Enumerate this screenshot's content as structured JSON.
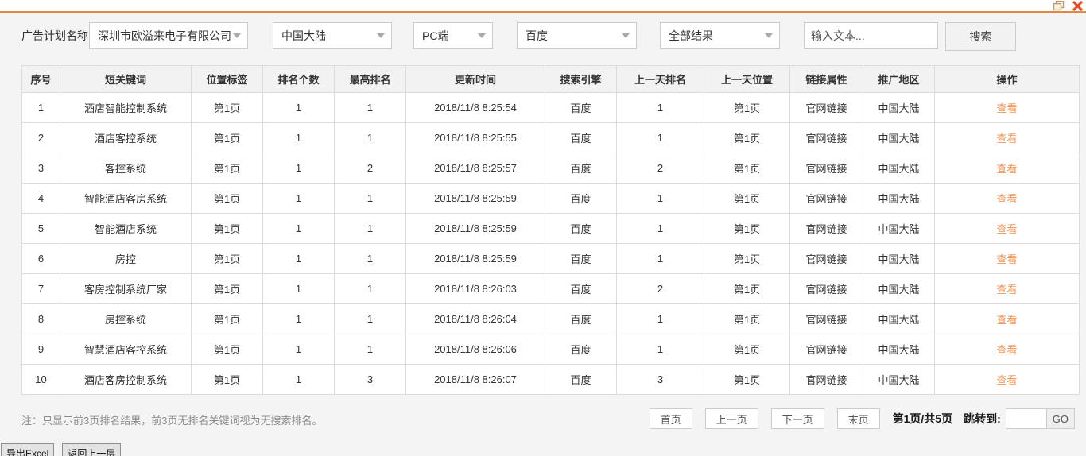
{
  "window": {
    "restore_icon": "restore-window",
    "close_icon": "close-window"
  },
  "filters": {
    "label": "广告计划名称:",
    "dropdowns": [
      {
        "name": "ad-plan",
        "value": "深圳市欧溢来电子有限公司"
      },
      {
        "name": "region",
        "value": "中国大陆"
      },
      {
        "name": "device",
        "value": "PC端"
      },
      {
        "name": "engine",
        "value": "百度"
      },
      {
        "name": "result-scope",
        "value": "全部结果"
      }
    ],
    "search_placeholder": "输入文本...",
    "search_button": "搜索"
  },
  "table": {
    "columns": [
      "序号",
      "短关键词",
      "位置标签",
      "排名个数",
      "最高排名",
      "更新时间",
      "搜索引擎",
      "上一天排名",
      "上一天位置",
      "链接属性",
      "推广地区",
      "操作"
    ],
    "rows": [
      {
        "seq": "1",
        "keyword": "酒店智能控制系统",
        "pos_tag": "第1页",
        "rank_count": "1",
        "best_rank": "1",
        "updated": "2018/11/8 8:25:54",
        "engine": "百度",
        "prev_rank": "1",
        "prev_pos": "第1页",
        "link_type": "官网链接",
        "region": "中国大陆",
        "action": "查看"
      },
      {
        "seq": "2",
        "keyword": "酒店客控系统",
        "pos_tag": "第1页",
        "rank_count": "1",
        "best_rank": "1",
        "updated": "2018/11/8 8:25:55",
        "engine": "百度",
        "prev_rank": "1",
        "prev_pos": "第1页",
        "link_type": "官网链接",
        "region": "中国大陆",
        "action": "查看"
      },
      {
        "seq": "3",
        "keyword": "客控系统",
        "pos_tag": "第1页",
        "rank_count": "1",
        "best_rank": "2",
        "updated": "2018/11/8 8:25:57",
        "engine": "百度",
        "prev_rank": "2",
        "prev_pos": "第1页",
        "link_type": "官网链接",
        "region": "中国大陆",
        "action": "查看"
      },
      {
        "seq": "4",
        "keyword": "智能酒店客房系统",
        "pos_tag": "第1页",
        "rank_count": "1",
        "best_rank": "1",
        "updated": "2018/11/8 8:25:59",
        "engine": "百度",
        "prev_rank": "1",
        "prev_pos": "第1页",
        "link_type": "官网链接",
        "region": "中国大陆",
        "action": "查看"
      },
      {
        "seq": "5",
        "keyword": "智能酒店系统",
        "pos_tag": "第1页",
        "rank_count": "1",
        "best_rank": "1",
        "updated": "2018/11/8 8:25:59",
        "engine": "百度",
        "prev_rank": "1",
        "prev_pos": "第1页",
        "link_type": "官网链接",
        "region": "中国大陆",
        "action": "查看"
      },
      {
        "seq": "6",
        "keyword": "房控",
        "pos_tag": "第1页",
        "rank_count": "1",
        "best_rank": "1",
        "updated": "2018/11/8 8:25:59",
        "engine": "百度",
        "prev_rank": "1",
        "prev_pos": "第1页",
        "link_type": "官网链接",
        "region": "中国大陆",
        "action": "查看"
      },
      {
        "seq": "7",
        "keyword": "客房控制系统厂家",
        "pos_tag": "第1页",
        "rank_count": "1",
        "best_rank": "1",
        "updated": "2018/11/8 8:26:03",
        "engine": "百度",
        "prev_rank": "2",
        "prev_pos": "第1页",
        "link_type": "官网链接",
        "region": "中国大陆",
        "action": "查看"
      },
      {
        "seq": "8",
        "keyword": "房控系统",
        "pos_tag": "第1页",
        "rank_count": "1",
        "best_rank": "1",
        "updated": "2018/11/8 8:26:04",
        "engine": "百度",
        "prev_rank": "1",
        "prev_pos": "第1页",
        "link_type": "官网链接",
        "region": "中国大陆",
        "action": "查看"
      },
      {
        "seq": "9",
        "keyword": "智慧酒店客控系统",
        "pos_tag": "第1页",
        "rank_count": "1",
        "best_rank": "1",
        "updated": "2018/11/8 8:26:06",
        "engine": "百度",
        "prev_rank": "1",
        "prev_pos": "第1页",
        "link_type": "官网链接",
        "region": "中国大陆",
        "action": "查看"
      },
      {
        "seq": "10",
        "keyword": "酒店客房控制系统",
        "pos_tag": "第1页",
        "rank_count": "1",
        "best_rank": "3",
        "updated": "2018/11/8 8:26:07",
        "engine": "百度",
        "prev_rank": "3",
        "prev_pos": "第1页",
        "link_type": "官网链接",
        "region": "中国大陆",
        "action": "查看"
      }
    ]
  },
  "footer": {
    "note": "注：只显示前3页排名结果，前3页无排名关键词视为无搜索排名。",
    "pagination": {
      "first": "首页",
      "prev": "上一页",
      "next": "下一页",
      "last": "末页",
      "status": "第1页/共5页",
      "jump_label": "跳转到:",
      "jump_value": "",
      "go": "GO"
    }
  },
  "bottom_buttons": {
    "export_excel": "导出Excel",
    "back": "返回上一层"
  },
  "colors": {
    "accent_orange": "#e2873b",
    "action_link": "#ed9355",
    "close_red": "#e74c25",
    "restore_tan": "#c49768",
    "header_bg": "#f2f2f2",
    "page_bg": "#f4f4f4"
  }
}
